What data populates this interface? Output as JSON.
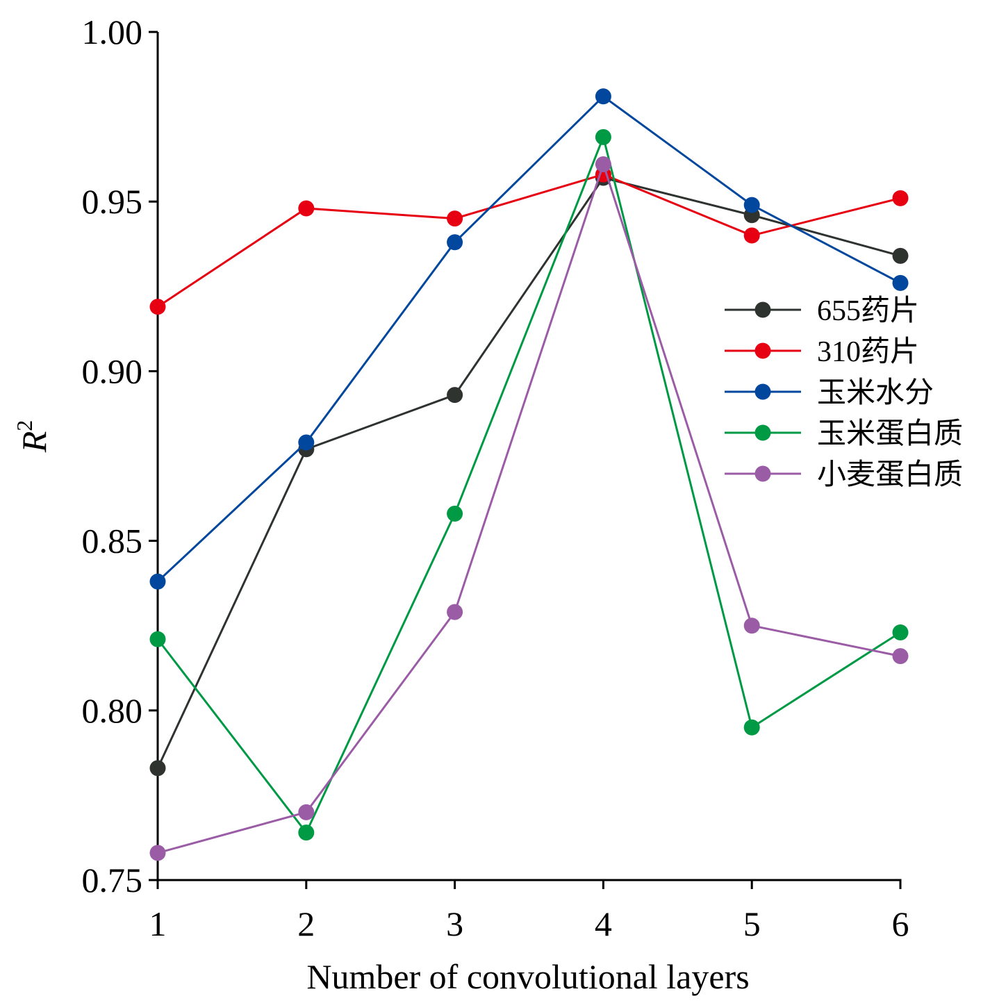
{
  "chart_data": {
    "type": "line",
    "x": [
      1,
      2,
      3,
      4,
      5,
      6
    ],
    "xlabel": "Number of convolutional layers",
    "ylabel": "R",
    "ylabel_superscript": "2",
    "ylim": [
      0.75,
      1.0
    ],
    "xlim": [
      1,
      6
    ],
    "yticks": [
      "0.75",
      "0.80",
      "0.85",
      "0.90",
      "0.95",
      "1.00"
    ],
    "xticks": [
      "1",
      "2",
      "3",
      "4",
      "5",
      "6"
    ],
    "grid": false,
    "legend_position": "right",
    "series": [
      {
        "name": "655药片",
        "color": "#2f3330",
        "values": [
          0.783,
          0.877,
          0.893,
          0.957,
          0.946,
          0.934
        ]
      },
      {
        "name": "310药片",
        "color": "#e60012",
        "values": [
          0.919,
          0.948,
          0.945,
          0.958,
          0.94,
          0.951
        ]
      },
      {
        "name": "玉米水分",
        "color": "#00479d",
        "values": [
          0.838,
          0.879,
          0.938,
          0.981,
          0.949,
          0.926
        ]
      },
      {
        "name": "玉米蛋白质",
        "color": "#009944",
        "values": [
          0.821,
          0.764,
          0.858,
          0.969,
          0.795,
          0.823
        ]
      },
      {
        "name": "小麦蛋白质",
        "color": "#9b5ca6",
        "values": [
          0.758,
          0.77,
          0.829,
          0.961,
          0.825,
          0.816
        ]
      }
    ]
  }
}
